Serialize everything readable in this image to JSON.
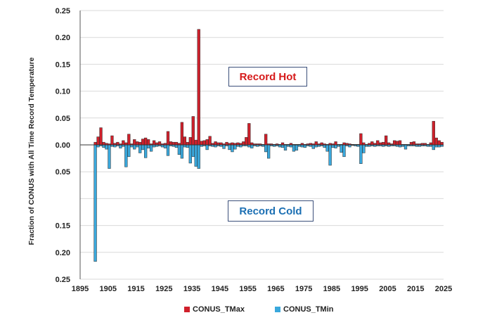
{
  "chart_data": {
    "type": "bar",
    "title": "",
    "ylabel": "Fraction of CONUS with All Time Record Temperature",
    "xlabel": "",
    "xlim": [
      1895,
      2025
    ],
    "ylim": [
      -0.25,
      0.25
    ],
    "x_ticks": [
      1895,
      1905,
      1915,
      1925,
      1935,
      1945,
      1955,
      1965,
      1975,
      1985,
      1995,
      2005,
      2015,
      2025
    ],
    "y_ticks": [
      -0.25,
      -0.2,
      -0.15,
      -0.1,
      -0.05,
      0.0,
      0.05,
      0.1,
      0.15,
      0.2,
      0.25
    ],
    "y_tick_labels": [
      "0.25",
      "0.20",
      "0.15",
      "",
      "0.05",
      "0.00",
      "0.05",
      "0.10",
      "0.15",
      "0.20",
      "0.25"
    ],
    "grid": true,
    "legend_position": "bottom",
    "annotations": [
      {
        "text": "Record Hot",
        "color": "#d61a1a"
      },
      {
        "text": "Record Cold",
        "color": "#1b6fb3"
      }
    ],
    "series": [
      {
        "name": "CONUS_TMax",
        "color": "#d0202b",
        "x": [
          1895,
          1896,
          1897,
          1898,
          1899,
          1900,
          1901,
          1902,
          1903,
          1904,
          1905,
          1906,
          1907,
          1908,
          1909,
          1910,
          1911,
          1912,
          1913,
          1914,
          1915,
          1916,
          1917,
          1918,
          1919,
          1920,
          1921,
          1922,
          1923,
          1924,
          1925,
          1926,
          1927,
          1928,
          1929,
          1930,
          1931,
          1932,
          1933,
          1934,
          1935,
          1936,
          1937,
          1938,
          1939,
          1940,
          1941,
          1942,
          1943,
          1944,
          1945,
          1946,
          1947,
          1948,
          1949,
          1950,
          1951,
          1952,
          1953,
          1954,
          1955,
          1956,
          1957,
          1958,
          1959,
          1960,
          1961,
          1962,
          1963,
          1964,
          1965,
          1966,
          1967,
          1968,
          1969,
          1970,
          1971,
          1972,
          1973,
          1974,
          1975,
          1976,
          1977,
          1978,
          1979,
          1980,
          1981,
          1982,
          1983,
          1984,
          1985,
          1986,
          1987,
          1988,
          1989,
          1990,
          1991,
          1992,
          1993,
          1994,
          1995,
          1996,
          1997,
          1998,
          1999,
          2000,
          2001,
          2002,
          2003,
          2004,
          2005,
          2006,
          2007,
          2008,
          2009,
          2010,
          2011,
          2012,
          2013,
          2014,
          2015,
          2016,
          2017,
          2018,
          2019,
          2020,
          2021,
          2022,
          2023,
          2024
        ],
        "values": [
          0,
          0,
          0,
          0,
          0,
          0.005,
          0.015,
          0.032,
          0.005,
          0.003,
          0.002,
          0.017,
          0.003,
          0.005,
          0.002,
          0.008,
          0.004,
          0.02,
          0.002,
          0.01,
          0.006,
          0.005,
          0.011,
          0.013,
          0.01,
          0.002,
          0.008,
          0.004,
          0.006,
          0.002,
          0.003,
          0.025,
          0.006,
          0.005,
          0.005,
          0.003,
          0.042,
          0.015,
          0.005,
          0.014,
          0.053,
          0.009,
          0.215,
          0.007,
          0.008,
          0.01,
          0.016,
          0.003,
          0.006,
          0.004,
          0.004,
          0.002,
          0.005,
          0.003,
          0.004,
          0.003,
          0.004,
          0.003,
          0.006,
          0.014,
          0.04,
          0.004,
          0.002,
          0.002,
          0.002,
          0.001,
          0.02,
          0.002,
          0.002,
          0.001,
          0.002,
          0.001,
          0.004,
          0.001,
          0.001,
          0.003,
          0.001,
          0.001,
          0.001,
          0.003,
          0.001,
          0.002,
          0.003,
          0.002,
          0.006,
          0.002,
          0.004,
          0.002,
          0.001,
          0.003,
          0.002,
          0.006,
          0.001,
          0.001,
          0.004,
          0.003,
          0.002,
          0.001,
          0.001,
          0.001,
          0.021,
          0.004,
          0.001,
          0.003,
          0.006,
          0.003,
          0.008,
          0.004,
          0.005,
          0.017,
          0.004,
          0.002,
          0.008,
          0.007,
          0.008,
          0.001,
          0.001,
          0.001,
          0.005,
          0.006,
          0.002,
          0.002,
          0.003,
          0.003,
          0.001,
          0.004,
          0.044,
          0.013,
          0.008,
          0.005
        ]
      },
      {
        "name": "CONUS_TMin",
        "color": "#3aa8dc",
        "x": [
          1895,
          1896,
          1897,
          1898,
          1899,
          1900,
          1901,
          1902,
          1903,
          1904,
          1905,
          1906,
          1907,
          1908,
          1909,
          1910,
          1911,
          1912,
          1913,
          1914,
          1915,
          1916,
          1917,
          1918,
          1919,
          1920,
          1921,
          1922,
          1923,
          1924,
          1925,
          1926,
          1927,
          1928,
          1929,
          1930,
          1931,
          1932,
          1933,
          1934,
          1935,
          1936,
          1937,
          1938,
          1939,
          1940,
          1941,
          1942,
          1943,
          1944,
          1945,
          1946,
          1947,
          1948,
          1949,
          1950,
          1951,
          1952,
          1953,
          1954,
          1955,
          1956,
          1957,
          1958,
          1959,
          1960,
          1961,
          1962,
          1963,
          1964,
          1965,
          1966,
          1967,
          1968,
          1969,
          1970,
          1971,
          1972,
          1973,
          1974,
          1975,
          1976,
          1977,
          1978,
          1979,
          1980,
          1981,
          1982,
          1983,
          1984,
          1985,
          1986,
          1987,
          1988,
          1989,
          1990,
          1991,
          1992,
          1993,
          1994,
          1995,
          1996,
          1997,
          1998,
          1999,
          2000,
          2001,
          2002,
          2003,
          2004,
          2005,
          2006,
          2007,
          2008,
          2009,
          2010,
          2011,
          2012,
          2013,
          2014,
          2015,
          2016,
          2017,
          2018,
          2019,
          2020,
          2021,
          2022,
          2023,
          2024
        ],
        "values": [
          0,
          0,
          0,
          0,
          0,
          -0.217,
          -0.004,
          -0.002,
          -0.005,
          -0.008,
          -0.044,
          -0.003,
          -0.004,
          -0.002,
          -0.006,
          -0.003,
          -0.041,
          -0.022,
          -0.004,
          -0.008,
          -0.004,
          -0.015,
          -0.009,
          -0.024,
          -0.006,
          -0.012,
          -0.004,
          -0.003,
          -0.002,
          -0.004,
          -0.006,
          -0.02,
          -0.002,
          -0.003,
          -0.005,
          -0.018,
          -0.025,
          -0.004,
          -0.005,
          -0.034,
          -0.022,
          -0.04,
          -0.044,
          -0.003,
          -0.002,
          -0.009,
          -0.002,
          -0.003,
          -0.004,
          -0.002,
          -0.003,
          -0.007,
          -0.002,
          -0.009,
          -0.013,
          -0.008,
          -0.003,
          -0.004,
          -0.002,
          -0.002,
          -0.004,
          -0.006,
          -0.002,
          -0.003,
          -0.002,
          -0.003,
          -0.013,
          -0.025,
          -0.002,
          -0.003,
          -0.002,
          -0.004,
          -0.005,
          -0.01,
          -0.003,
          -0.004,
          -0.012,
          -0.01,
          -0.003,
          -0.004,
          -0.005,
          -0.002,
          -0.003,
          -0.007,
          -0.004,
          -0.003,
          -0.002,
          -0.005,
          -0.012,
          -0.038,
          -0.005,
          -0.006,
          -0.003,
          -0.014,
          -0.022,
          -0.002,
          -0.004,
          -0.001,
          -0.002,
          -0.003,
          -0.035,
          -0.015,
          -0.003,
          -0.003,
          -0.002,
          -0.003,
          -0.002,
          -0.002,
          -0.003,
          -0.002,
          -0.003,
          -0.002,
          -0.002,
          -0.003,
          -0.004,
          -0.003,
          -0.008,
          -0.002,
          -0.002,
          -0.002,
          -0.003,
          -0.003,
          -0.002,
          -0.002,
          -0.003,
          -0.003,
          -0.009,
          -0.004,
          -0.004,
          -0.003
        ]
      }
    ]
  }
}
